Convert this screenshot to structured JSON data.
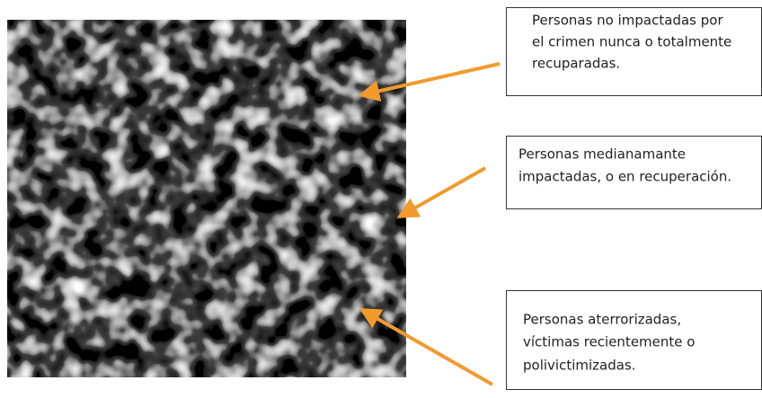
{
  "annotations": [
    {
      "lines": [
        "Personas no impactadas por",
        "el crimen nunca o totalmente",
        "recuparadas."
      ]
    },
    {
      "lines": [
        "Personas medianamante",
        "impactadas, o en recuperación."
      ]
    },
    {
      "lines": [
        "Personas aterrorizadas,",
        "víctimas recientemente o",
        "polivictimizadas."
      ]
    }
  ]
}
